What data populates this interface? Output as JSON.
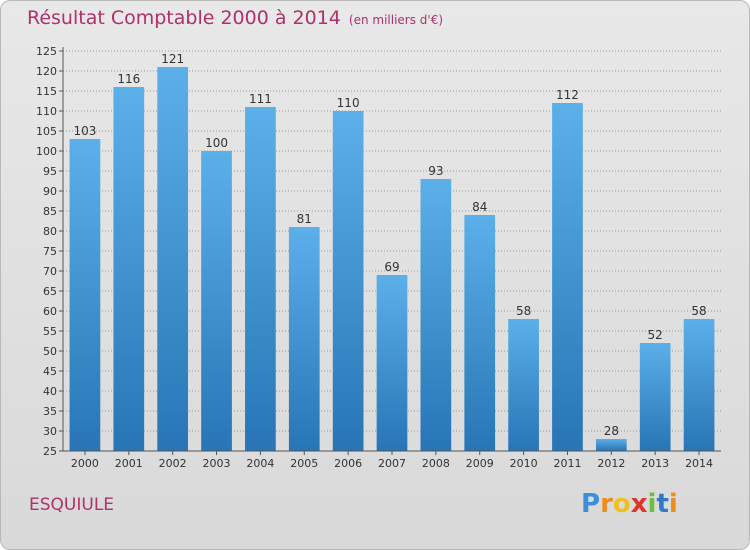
{
  "title": "Résultat Comptable 2000 à 2014",
  "subtitle": "(en milliers d'€)",
  "commune": "ESQUIULE",
  "logo": {
    "letters": [
      "P",
      "r",
      "o",
      "x",
      "i",
      "t",
      "i"
    ],
    "colors": [
      "#3a8fd8",
      "#f08c1e",
      "#f0c020",
      "#e0342a",
      "#6cbf3a",
      "#2f79c8",
      "#f08c1e"
    ]
  },
  "colors": {
    "title": "#b0306a",
    "bar_light": "#5cb0ea",
    "bar_dark": "#2775b5",
    "grid": "#9a9a9a",
    "background": "#e0e0e0"
  },
  "chart_data": {
    "type": "bar",
    "categories": [
      "2000",
      "2001",
      "2002",
      "2003",
      "2004",
      "2005",
      "2006",
      "2007",
      "2008",
      "2009",
      "2010",
      "2011",
      "2012",
      "2013",
      "2014"
    ],
    "values": [
      103,
      116,
      121,
      100,
      111,
      81,
      110,
      69,
      93,
      84,
      58,
      112,
      28,
      52,
      58
    ],
    "title": "Résultat Comptable 2000 à 2014",
    "xlabel": "",
    "ylabel": "",
    "ylim": [
      25,
      125
    ],
    "yticks": [
      25,
      30,
      35,
      40,
      45,
      50,
      55,
      60,
      65,
      70,
      75,
      80,
      85,
      90,
      95,
      100,
      105,
      110,
      115,
      120,
      125
    ],
    "grid": true,
    "legend": "none"
  }
}
